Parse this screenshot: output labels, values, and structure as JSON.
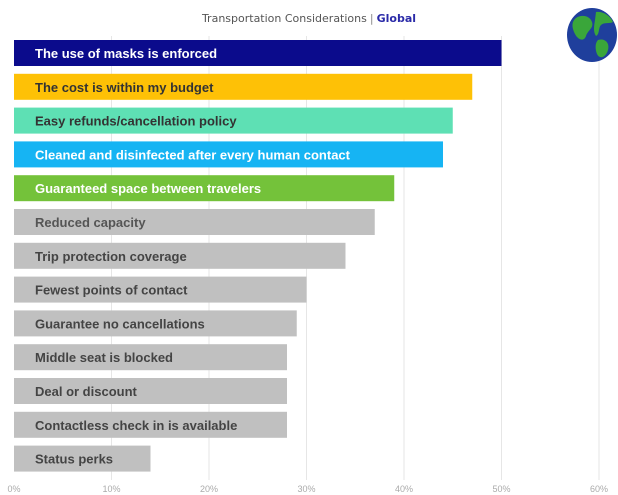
{
  "title": "Transportation Considerations",
  "title_separator": "|",
  "title_scope": "Global",
  "globe_icon": "globe-icon",
  "chart_data": {
    "type": "bar",
    "orientation": "horizontal",
    "xlim": [
      0,
      60
    ],
    "x_ticks": [
      "0%",
      "10%",
      "20%",
      "30%",
      "40%",
      "50%",
      "60%"
    ],
    "grid": true,
    "categories": [
      "The use of masks is enforced",
      "The cost is within my budget",
      "Easy refunds/cancellation policy",
      "Cleaned and disinfected after every human contact",
      "Guaranteed space between travelers",
      "Reduced capacity",
      "Trip protection coverage",
      "Fewest points of contact",
      "Guarantee no cancellations",
      "Middle seat is blocked",
      "Deal or discount",
      "Contactless check in is available",
      "Status perks"
    ],
    "values": [
      50,
      47,
      45,
      44,
      39,
      37,
      34,
      30,
      29,
      28,
      28,
      28,
      14
    ],
    "colors": [
      "#0b0b8c",
      "#fec106",
      "#5ee0b4",
      "#16b4f3",
      "#74c23a",
      "#c0c0c0",
      "#c0c0c0",
      "#c0c0c0",
      "#c0c0c0",
      "#c0c0c0",
      "#c0c0c0",
      "#c0c0c0",
      "#c0c0c0"
    ],
    "label_colors": [
      "#ffffff",
      "#333333",
      "#333333",
      "#ffffff",
      "#ffffff",
      "#555555",
      "#444444",
      "#444444",
      "#444444",
      "#444444",
      "#444444",
      "#444444",
      "#444444"
    ]
  }
}
